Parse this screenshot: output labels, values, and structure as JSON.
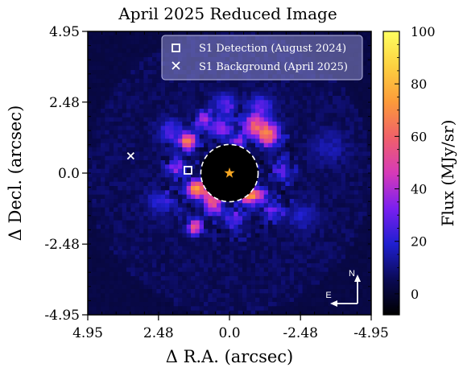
{
  "chart_data": {
    "type": "heatmap",
    "title": "April 2025 Reduced Image",
    "xlabel": "Δ R.A. (arcsec)",
    "ylabel": "Δ Decl. (arcsec)",
    "colorbar_label": "Flux (MJy/sr)",
    "xlim": [
      4.95,
      -4.95
    ],
    "ylim": [
      -4.95,
      4.95
    ],
    "x_ticks": [
      {
        "value": 4.95,
        "label": "4.95"
      },
      {
        "value": 2.48,
        "label": "2.48"
      },
      {
        "value": 0.0,
        "label": "0.0"
      },
      {
        "value": -2.48,
        "label": "-2.48"
      },
      {
        "value": -4.95,
        "label": "-4.95"
      }
    ],
    "y_ticks": [
      {
        "value": 4.95,
        "label": "4.95"
      },
      {
        "value": 2.48,
        "label": "2.48"
      },
      {
        "value": 0.0,
        "label": "0.0"
      },
      {
        "value": -2.48,
        "label": "-2.48"
      },
      {
        "value": -4.95,
        "label": "-4.95"
      }
    ],
    "colorbar_range": [
      -8,
      100
    ],
    "colorbar_ticks": [
      {
        "value": 100,
        "label": "100"
      },
      {
        "value": 80,
        "label": "80"
      },
      {
        "value": 60,
        "label": "60"
      },
      {
        "value": 40,
        "label": "40"
      },
      {
        "value": 20,
        "label": "20"
      },
      {
        "value": 0,
        "label": "0"
      }
    ],
    "colormap": [
      "#000000",
      "#0a0a55",
      "#1f1fd0",
      "#7a1ff0",
      "#d63ab8",
      "#f0606a",
      "#fc9a3a",
      "#fdd040",
      "#ffff60"
    ],
    "coronagraph_mask": {
      "center": [
        0.0,
        0.0
      ],
      "radius": 1.0
    },
    "field_of_view_radius": 4.95,
    "star": {
      "x": 0.0,
      "y": 0.0,
      "color": "#f5a623"
    },
    "legend_position": "upper-right",
    "series": [
      {
        "name": "S1 Detection (August 2024)",
        "marker": "square",
        "x": 1.45,
        "y": 0.1
      },
      {
        "name": "S1 Background (April 2025)",
        "marker": "x",
        "x": 3.45,
        "y": 0.6
      }
    ],
    "speckles": [
      {
        "x": -1.35,
        "y": 1.35,
        "flux": 55,
        "sigma": 0.28
      },
      {
        "x": -0.85,
        "y": 1.65,
        "flux": 45,
        "sigma": 0.25
      },
      {
        "x": 0.25,
        "y": 1.55,
        "flux": 30,
        "sigma": 0.22
      },
      {
        "x": 1.45,
        "y": 1.1,
        "flux": 60,
        "sigma": 0.2
      },
      {
        "x": 0.9,
        "y": 1.85,
        "flux": 30,
        "sigma": 0.22
      },
      {
        "x": 1.15,
        "y": -0.55,
        "flux": 70,
        "sigma": 0.22
      },
      {
        "x": 0.6,
        "y": -0.85,
        "flux": 45,
        "sigma": 0.22
      },
      {
        "x": -0.65,
        "y": -0.8,
        "flux": 62,
        "sigma": 0.18
      },
      {
        "x": -1.0,
        "y": -0.75,
        "flux": 40,
        "sigma": 0.2
      },
      {
        "x": 0.55,
        "y": -1.25,
        "flux": 28,
        "sigma": 0.22
      },
      {
        "x": 1.2,
        "y": -1.9,
        "flux": 50,
        "sigma": 0.18
      },
      {
        "x": 1.85,
        "y": 0.2,
        "flux": 28,
        "sigma": 0.22
      },
      {
        "x": -1.85,
        "y": 0.1,
        "flux": 22,
        "sigma": 0.25
      },
      {
        "x": -1.55,
        "y": -1.3,
        "flux": 22,
        "sigma": 0.25
      },
      {
        "x": 0.15,
        "y": 2.35,
        "flux": 22,
        "sigma": 0.3
      },
      {
        "x": -1.1,
        "y": 2.3,
        "flux": 22,
        "sigma": 0.3
      },
      {
        "x": 2.05,
        "y": 1.45,
        "flux": 20,
        "sigma": 0.3
      },
      {
        "x": -0.3,
        "y": 1.1,
        "flux": 28,
        "sigma": 0.2
      },
      {
        "x": -0.2,
        "y": -1.6,
        "flux": 22,
        "sigma": 0.25
      },
      {
        "x": 2.4,
        "y": -1.0,
        "flux": 14,
        "sigma": 0.35
      },
      {
        "x": -2.55,
        "y": -1.5,
        "flux": 12,
        "sigma": 0.35
      },
      {
        "x": -3.5,
        "y": 0.9,
        "flux": 10,
        "sigma": 0.4
      }
    ]
  },
  "compass": {
    "north_label": "N",
    "east_label": "E"
  }
}
